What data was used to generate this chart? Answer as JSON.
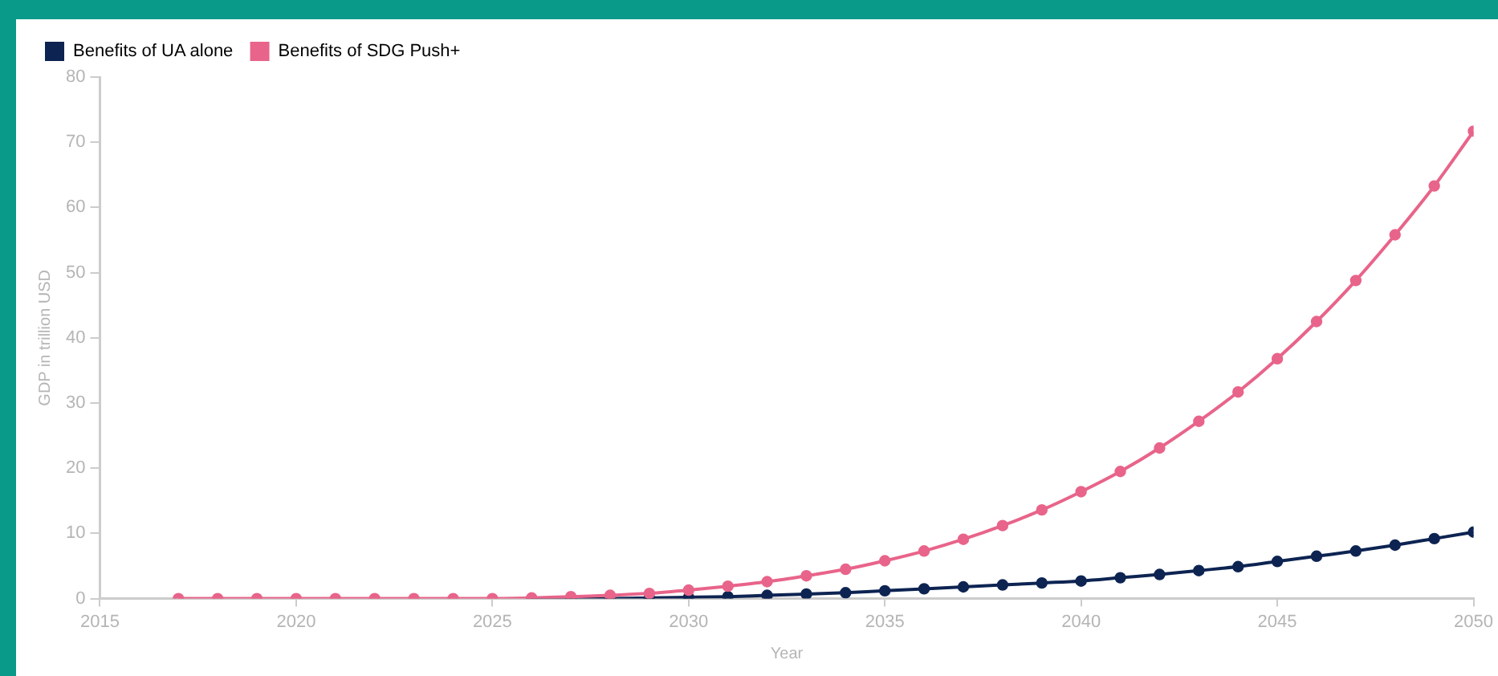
{
  "chart_data": {
    "type": "line",
    "xlabel": "Year",
    "ylabel": "GDP in trillion USD",
    "x": [
      2017,
      2018,
      2019,
      2020,
      2021,
      2022,
      2023,
      2024,
      2025,
      2026,
      2027,
      2028,
      2029,
      2030,
      2031,
      2032,
      2033,
      2034,
      2035,
      2036,
      2037,
      2038,
      2039,
      2040,
      2041,
      2042,
      2043,
      2044,
      2045,
      2046,
      2047,
      2048,
      2049,
      2050
    ],
    "series": [
      {
        "name": "Benefits of UA alone",
        "color": "#0d2452",
        "values": [
          null,
          null,
          null,
          null,
          null,
          null,
          null,
          null,
          null,
          0,
          0,
          0,
          0.1,
          0.2,
          0.3,
          0.5,
          0.7,
          0.9,
          1.2,
          1.5,
          1.8,
          2.1,
          2.4,
          2.7,
          3.2,
          3.7,
          4.3,
          4.9,
          5.7,
          6.5,
          7.3,
          8.2,
          9.2,
          10.2
        ]
      },
      {
        "name": "Benefits of SDG Push+",
        "color": "#e8648a",
        "values": [
          0,
          0,
          0,
          0,
          0,
          0,
          0,
          0,
          0,
          0.1,
          0.3,
          0.5,
          0.8,
          1.3,
          1.9,
          2.6,
          3.5,
          4.5,
          5.8,
          7.3,
          9.1,
          11.2,
          13.6,
          16.4,
          19.5,
          23.1,
          27.2,
          31.7,
          36.8,
          42.5,
          48.8,
          55.8,
          63.3,
          71.7
        ]
      }
    ],
    "xlim": [
      2015,
      2050
    ],
    "xticks": [
      2015,
      2020,
      2025,
      2030,
      2035,
      2040,
      2045,
      2050
    ],
    "ylim": [
      0,
      80
    ],
    "yticks": [
      0,
      10,
      20,
      30,
      40,
      50,
      60,
      70,
      80
    ],
    "grid": false,
    "legend": "top left",
    "marker": "circle",
    "line_style": "solid"
  }
}
